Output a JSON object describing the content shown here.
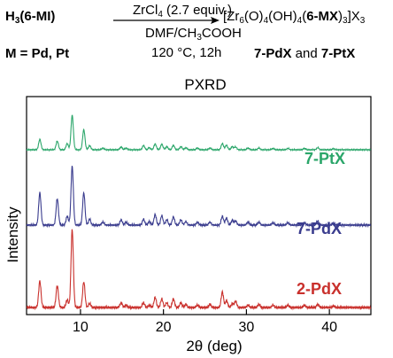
{
  "scheme": {
    "reactant": {
      "prefix": "H",
      "sub": "3",
      "open": "(",
      "ligand": "6-MI",
      "close": ")"
    },
    "metal": {
      "prefix": "M = ",
      "value": "Pd, Pt"
    },
    "reagent": {
      "prefix": "ZrCl",
      "sub": "4",
      "suffix": " (2.7 equiv.)"
    },
    "solvent": {
      "prefix": "DMF/CH",
      "sub": "3",
      "suffix": "COOH"
    },
    "conditions": "120 °C, 12h",
    "product": {
      "p1": "[Zr",
      "s1": "6",
      "p2": "(O)",
      "s2": "4",
      "p3": "(OH)",
      "s3": "4",
      "p4": "(",
      "ligand": "6-MX",
      "p5": ")",
      "s4": "3",
      "p6": "]X",
      "s5": "3"
    },
    "product_labels": {
      "a": "7-PdX",
      "and": " and ",
      "b": "7-PtX"
    }
  },
  "chart_data": {
    "type": "line",
    "title": "PXRD",
    "xlabel": "2θ (deg)",
    "ylabel": "Intensity",
    "xlim": [
      3.5,
      45
    ],
    "xticks": [
      10,
      20,
      30,
      40
    ],
    "grid": false,
    "series": [
      {
        "name": "7-PtX",
        "color": "#2ba66a",
        "peak_scale": 0.75,
        "peaks": [
          [
            5.1,
            0.3
          ],
          [
            7.2,
            0.25
          ],
          [
            8.4,
            0.18
          ],
          [
            9.0,
            1.0
          ],
          [
            10.4,
            0.58
          ],
          [
            11.1,
            0.12
          ],
          [
            12.7,
            0.05
          ],
          [
            14.9,
            0.08
          ],
          [
            15.5,
            0.05
          ],
          [
            17.6,
            0.12
          ],
          [
            18.3,
            0.06
          ],
          [
            19.0,
            0.17
          ],
          [
            19.8,
            0.16
          ],
          [
            20.4,
            0.09
          ],
          [
            21.2,
            0.13
          ],
          [
            22.1,
            0.09
          ],
          [
            22.7,
            0.06
          ],
          [
            24.1,
            0.05
          ],
          [
            25.6,
            0.05
          ],
          [
            27.1,
            0.18
          ],
          [
            27.6,
            0.13
          ],
          [
            28.3,
            0.09
          ],
          [
            28.7,
            0.08
          ],
          [
            30.2,
            0.05
          ],
          [
            31.5,
            0.05
          ],
          [
            33.2,
            0.04
          ],
          [
            35.0,
            0.04
          ],
          [
            37.0,
            0.04
          ],
          [
            38.6,
            0.06
          ],
          [
            40.5,
            0.03
          ]
        ]
      },
      {
        "name": "7-PdX",
        "color": "#3a3c8e",
        "peak_scale": 0.95,
        "peaks": [
          [
            5.1,
            0.55
          ],
          [
            7.2,
            0.45
          ],
          [
            8.4,
            0.15
          ],
          [
            9.0,
            1.0
          ],
          [
            10.4,
            0.55
          ],
          [
            11.1,
            0.1
          ],
          [
            12.7,
            0.05
          ],
          [
            14.9,
            0.09
          ],
          [
            15.5,
            0.05
          ],
          [
            17.6,
            0.1
          ],
          [
            18.3,
            0.06
          ],
          [
            19.0,
            0.18
          ],
          [
            19.8,
            0.16
          ],
          [
            20.4,
            0.09
          ],
          [
            21.2,
            0.14
          ],
          [
            22.1,
            0.09
          ],
          [
            22.7,
            0.06
          ],
          [
            24.1,
            0.05
          ],
          [
            25.6,
            0.05
          ],
          [
            27.1,
            0.15
          ],
          [
            27.6,
            0.12
          ],
          [
            28.3,
            0.08
          ],
          [
            28.7,
            0.07
          ],
          [
            30.2,
            0.05
          ],
          [
            31.5,
            0.05
          ],
          [
            33.2,
            0.04
          ],
          [
            35.0,
            0.04
          ],
          [
            37.0,
            0.04
          ],
          [
            38.6,
            0.07
          ],
          [
            40.5,
            0.03
          ]
        ]
      },
      {
        "name": "2-PdX",
        "color": "#c9302c",
        "peak_scale": 1.1,
        "peaks": [
          [
            5.1,
            0.34
          ],
          [
            7.2,
            0.28
          ],
          [
            8.4,
            0.1
          ],
          [
            9.0,
            1.0
          ],
          [
            10.4,
            0.33
          ],
          [
            11.1,
            0.05
          ],
          [
            14.9,
            0.06
          ],
          [
            15.5,
            0.03
          ],
          [
            17.6,
            0.06
          ],
          [
            18.3,
            0.03
          ],
          [
            19.0,
            0.13
          ],
          [
            19.8,
            0.11
          ],
          [
            20.4,
            0.06
          ],
          [
            21.2,
            0.11
          ],
          [
            22.1,
            0.06
          ],
          [
            22.7,
            0.04
          ],
          [
            24.1,
            0.03
          ],
          [
            25.6,
            0.04
          ],
          [
            27.1,
            0.2
          ],
          [
            27.6,
            0.09
          ],
          [
            28.3,
            0.05
          ],
          [
            28.7,
            0.08
          ],
          [
            30.2,
            0.03
          ],
          [
            31.5,
            0.04
          ],
          [
            33.2,
            0.03
          ],
          [
            35.0,
            0.03
          ],
          [
            37.0,
            0.03
          ],
          [
            38.6,
            0.04
          ],
          [
            40.5,
            0.02
          ]
        ]
      }
    ]
  }
}
